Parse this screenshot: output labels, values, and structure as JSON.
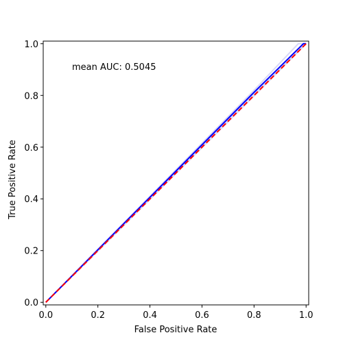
{
  "chart_data": {
    "type": "line",
    "title": "",
    "xlabel": "False Positive Rate",
    "ylabel": "True Positive Rate",
    "xlim": [
      -0.01,
      1.01
    ],
    "ylim": [
      -0.01,
      1.01
    ],
    "xticks": [
      "0.0",
      "0.2",
      "0.4",
      "0.6",
      "0.8",
      "1.0"
    ],
    "yticks": [
      "0.0",
      "0.2",
      "0.4",
      "0.6",
      "0.8",
      "1.0"
    ],
    "annotation": "mean AUC: 0.5045",
    "grid": false,
    "series": [
      {
        "role": "fold-curve",
        "color": "#c8c8f0",
        "x": [
          0,
          0.2,
          0.4,
          0.6,
          0.8,
          0.97,
          1.0
        ],
        "y": [
          0,
          0.205,
          0.41,
          0.615,
          0.82,
          1.0,
          1.0
        ]
      },
      {
        "role": "fold-curve",
        "color": "#c8c8f0",
        "x": [
          0,
          0.2,
          0.4,
          0.6,
          0.8,
          1.0
        ],
        "y": [
          0,
          0.202,
          0.404,
          0.606,
          0.808,
          1.0
        ]
      },
      {
        "role": "fold-curve",
        "color": "#c8c8f0",
        "x": [
          0,
          0.2,
          0.4,
          0.6,
          0.8,
          1.0
        ],
        "y": [
          0,
          0.198,
          0.398,
          0.598,
          0.798,
          1.0
        ]
      },
      {
        "role": "mean-curve",
        "color": "#0000ff",
        "x": [
          0,
          0.2,
          0.4,
          0.6,
          0.8,
          0.99,
          1.0
        ],
        "y": [
          0,
          0.203,
          0.406,
          0.609,
          0.812,
          1.0,
          1.0
        ]
      },
      {
        "role": "chance-line",
        "color": "#ff0000",
        "dashed": true,
        "x": [
          0,
          1
        ],
        "y": [
          0,
          1
        ]
      }
    ]
  }
}
